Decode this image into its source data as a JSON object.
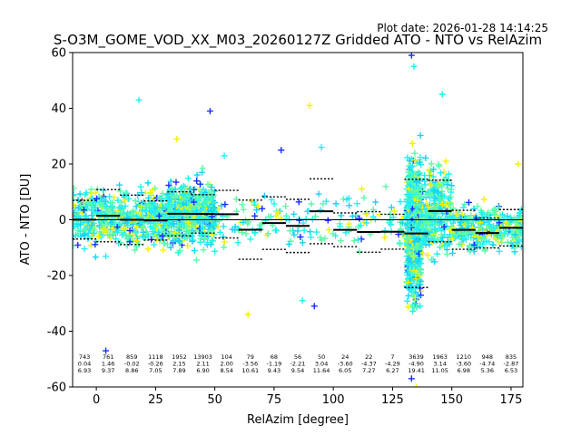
{
  "chart_data": {
    "type": "scatter",
    "plot_date": "Plot date: 2026-01-28 14:14:25",
    "title": "S-O3M_GOME_VOD_XX_M03_20260127Z Gridded ATO - NTO vs RelAzim",
    "xlabel": "RelAzim [degree]",
    "ylabel": "ATO - NTO [DU]",
    "xlim": [
      -10,
      180
    ],
    "ylim": [
      -60,
      60
    ],
    "x_ticks": [
      0,
      25,
      50,
      75,
      100,
      125,
      150,
      175
    ],
    "y_ticks": [
      -60,
      -40,
      -20,
      0,
      20,
      40,
      60
    ],
    "grid": false,
    "marker": "+",
    "colors": {
      "cyan": "#19d2f5",
      "aqua": "#22f0f0",
      "mint": "#5efaa8",
      "yellow": "#f2f200",
      "blue": "#1a2eff",
      "line": "#000000"
    },
    "bins": [
      {
        "x_start": -10,
        "x_end": 0,
        "x_label": -5,
        "count": "743",
        "mean": "0.04",
        "std": "6.93",
        "mean_val": 0.04,
        "std_val": 6.93
      },
      {
        "x_start": 0,
        "x_end": 10,
        "x_label": 5,
        "count": "761",
        "mean": "1.46",
        "std": "9.37",
        "mean_val": 1.46,
        "std_val": 9.37
      },
      {
        "x_start": 10,
        "x_end": 20,
        "x_label": 15,
        "count": "859",
        "mean": "-0.02",
        "std": "8.86",
        "mean_val": -0.02,
        "std_val": 8.86
      },
      {
        "x_start": 20,
        "x_end": 30,
        "x_label": 25,
        "count": "1118",
        "mean": "-0.26",
        "std": "7.05",
        "mean_val": -0.26,
        "std_val": 7.05
      },
      {
        "x_start": 30,
        "x_end": 40,
        "x_label": 35,
        "count": "1952",
        "mean": "2.15",
        "std": "7.89",
        "mean_val": 2.15,
        "std_val": 7.89
      },
      {
        "x_start": 40,
        "x_end": 50,
        "x_label": 45,
        "count": "13903",
        "mean": "2.11",
        "std": "6.90",
        "mean_val": 2.11,
        "std_val": 6.9
      },
      {
        "x_start": 50,
        "x_end": 60,
        "x_label": 55,
        "count": "104",
        "mean": "2.00",
        "std": "8.54",
        "mean_val": 2.0,
        "std_val": 8.54
      },
      {
        "x_start": 60,
        "x_end": 70,
        "x_label": 65,
        "count": "79",
        "mean": "-3.56",
        "std": "10.61",
        "mean_val": -3.56,
        "std_val": 10.61
      },
      {
        "x_start": 70,
        "x_end": 80,
        "x_label": 75,
        "count": "68",
        "mean": "-1.19",
        "std": "9.43",
        "mean_val": -1.19,
        "std_val": 9.43
      },
      {
        "x_start": 80,
        "x_end": 90,
        "x_label": 85,
        "count": "56",
        "mean": "-2.21",
        "std": "9.54",
        "mean_val": -2.21,
        "std_val": 9.54
      },
      {
        "x_start": 90,
        "x_end": 100,
        "x_label": 95,
        "count": "50",
        "mean": "3.04",
        "std": "11.64",
        "mean_val": 3.04,
        "std_val": 11.64
      },
      {
        "x_start": 100,
        "x_end": 110,
        "x_label": 105,
        "count": "24",
        "mean": "-3.60",
        "std": "6.05",
        "mean_val": -3.6,
        "std_val": 6.05
      },
      {
        "x_start": 110,
        "x_end": 120,
        "x_label": 115,
        "count": "22",
        "mean": "-4.37",
        "std": "7.27",
        "mean_val": -4.37,
        "std_val": 7.27
      },
      {
        "x_start": 120,
        "x_end": 130,
        "x_label": 125,
        "count": "7",
        "mean": "-4.29",
        "std": "6.27",
        "mean_val": -4.29,
        "std_val": 6.27
      },
      {
        "x_start": 130,
        "x_end": 140,
        "x_label": 135,
        "count": "3639",
        "mean": "-4.90",
        "std": "19.41",
        "mean_val": -4.9,
        "std_val": 19.41
      },
      {
        "x_start": 140,
        "x_end": 150,
        "x_label": 145,
        "count": "1963",
        "mean": "3.14",
        "std": "11.05",
        "mean_val": 3.14,
        "std_val": 11.05
      },
      {
        "x_start": 150,
        "x_end": 160,
        "x_label": 155,
        "count": "1210",
        "mean": "-3.60",
        "std": "6.98",
        "mean_val": -3.6,
        "std_val": 6.98
      },
      {
        "x_start": 160,
        "x_end": 170,
        "x_label": 165,
        "count": "948",
        "mean": "-4.74",
        "std": "5.36",
        "mean_val": -4.74,
        "std_val": 5.36
      },
      {
        "x_start": 170,
        "x_end": 180,
        "x_label": 175,
        "count": "835",
        "mean": "-2.87",
        "std": "6.53",
        "mean_val": -2.87,
        "std_val": 6.53
      }
    ],
    "clusters": [
      {
        "x_min": -10,
        "x_max": 8,
        "y_mean": 1,
        "y_spread": 9,
        "n": 260
      },
      {
        "x_min": 8,
        "x_max": 30,
        "y_mean": 0,
        "y_spread": 9,
        "n": 320
      },
      {
        "x_min": 30,
        "x_max": 50,
        "y_mean": 2,
        "y_spread": 10,
        "n": 520
      },
      {
        "x_min": 50,
        "x_max": 130,
        "y_mean": -1,
        "y_spread": 8,
        "n": 170
      },
      {
        "x_min": 131,
        "x_max": 137,
        "y_mean": -4,
        "y_spread": 22,
        "n": 700
      },
      {
        "x_min": 137,
        "x_max": 150,
        "y_mean": 3,
        "y_spread": 14,
        "n": 280
      },
      {
        "x_min": 150,
        "x_max": 180,
        "y_mean": -3,
        "y_spread": 7,
        "n": 320
      }
    ],
    "outliers": [
      {
        "x": 4,
        "y": -47
      },
      {
        "x": 18,
        "y": 43
      },
      {
        "x": 34,
        "y": 29
      },
      {
        "x": 48,
        "y": 39
      },
      {
        "x": 54,
        "y": 23
      },
      {
        "x": 64,
        "y": -34
      },
      {
        "x": 78,
        "y": 25
      },
      {
        "x": 87,
        "y": -29
      },
      {
        "x": 90,
        "y": 41
      },
      {
        "x": 92,
        "y": -31
      },
      {
        "x": 95,
        "y": 26
      },
      {
        "x": 112,
        "y": 11
      },
      {
        "x": 133,
        "y": 59
      },
      {
        "x": 134,
        "y": 55
      },
      {
        "x": 135,
        "y": -60
      },
      {
        "x": 133,
        "y": -57
      },
      {
        "x": 146,
        "y": 45
      },
      {
        "x": 178,
        "y": 20
      }
    ]
  }
}
